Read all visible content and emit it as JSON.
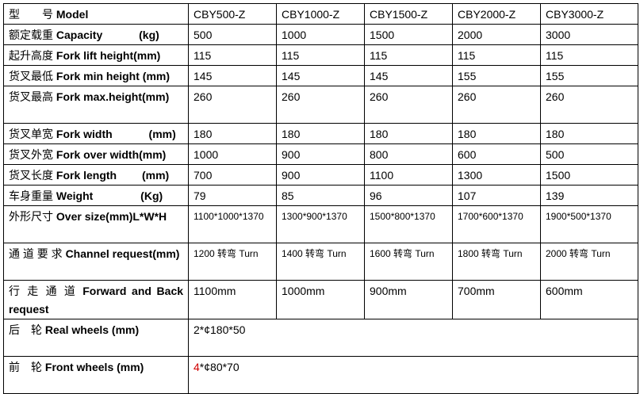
{
  "table": {
    "rows": [
      {
        "label_cn": "型　　号",
        "label_en": "Model",
        "cells": [
          "CBY500-Z",
          "CBY1000-Z",
          "CBY1500-Z",
          "CBY2000-Z",
          "CBY3000-Z"
        ]
      },
      {
        "label_cn": "额定载重",
        "label_en": "Capacity　　　 (kg)",
        "cells": [
          "500",
          "1000",
          "1500",
          "2000",
          "3000"
        ]
      },
      {
        "label_cn": "起升高度",
        "label_en": "Fork lift height(mm)",
        "cells": [
          "115",
          "115",
          "115",
          "115",
          "115"
        ]
      },
      {
        "label_cn": "货叉最低",
        "label_en": "Fork min height (mm)",
        "cells": [
          "145",
          "145",
          "145",
          "155",
          "155"
        ]
      },
      {
        "label_cn": "货叉最高",
        "label_en": "Fork max.height(mm)",
        "cells": [
          "260",
          "260",
          "260",
          "260",
          "260"
        ]
      },
      {
        "label_cn": "货叉单宽",
        "label_en": "Fork width　　　 (mm)",
        "cells": [
          "180",
          "180",
          "180",
          "180",
          "180"
        ]
      },
      {
        "label_cn": "货叉外宽",
        "label_en": "Fork over width(mm)",
        "cells": [
          "1000",
          "900",
          "800",
          "600",
          "500"
        ]
      },
      {
        "label_cn": "货叉长度",
        "label_en": "Fork length　　 (mm)",
        "cells": [
          "700",
          "900",
          "1100",
          "1300",
          "1500"
        ]
      },
      {
        "label_cn": "车身重量",
        "label_en": "Weight　　　　 (Kg)",
        "cells": [
          "79",
          "85",
          "96",
          "107",
          "139"
        ]
      },
      {
        "label_cn": "外形尺寸",
        "label_en": "Over size(mm)L*W*H",
        "cells": [
          "1100*1000*1370",
          "1300*900*1370",
          "1500*800*1370",
          "1700*600*1370",
          "1900*500*1370"
        ]
      },
      {
        "label_cn": "通 道 要 求",
        "label_en": "Channel request(mm)",
        "cells": [
          "1200 转弯 Turn",
          "1400 转弯 Turn",
          "1600 转弯 Turn",
          "1800 转弯 Turn",
          "2000 转弯 Turn"
        ]
      },
      {
        "label_cn": "行 走 通 道",
        "label_en": "Forward and Back request",
        "cells": [
          "1100mm",
          "1000mm",
          "900mm",
          "700mm",
          "600mm"
        ]
      },
      {
        "label_cn": "后　轮",
        "label_en": "Real wheels (mm)",
        "span": "2*¢180*50"
      },
      {
        "label_cn": "前　轮",
        "label_en": "Front wheels (mm)",
        "span_red": "4",
        "span_rest": "*¢80*70"
      }
    ]
  },
  "colors": {
    "highlight": "#d00000"
  }
}
